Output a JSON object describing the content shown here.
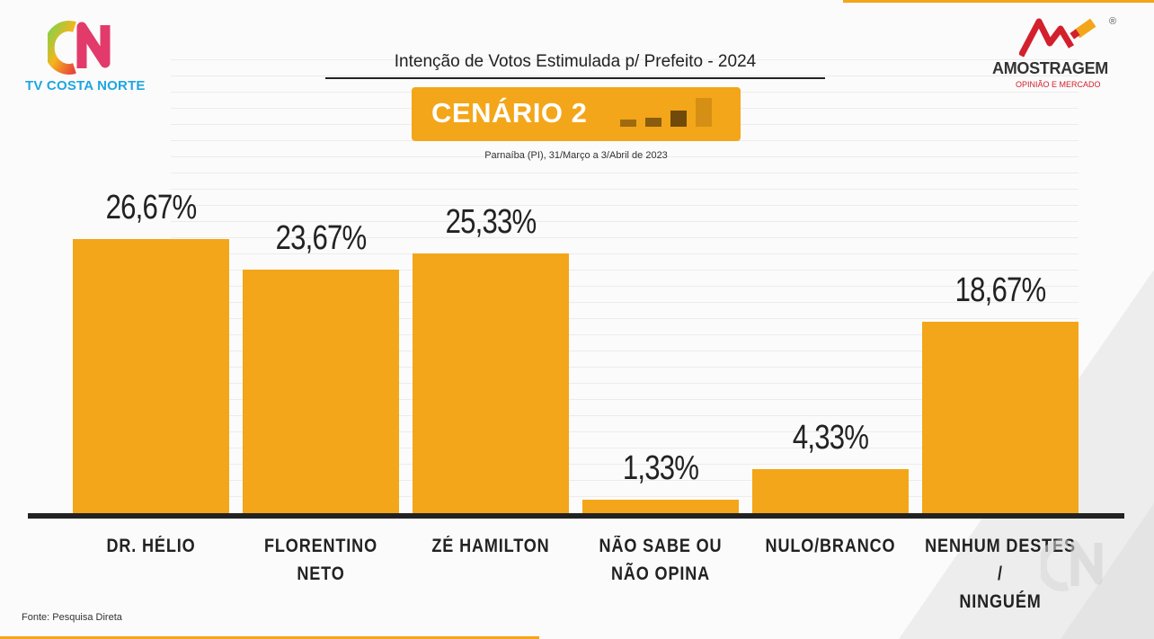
{
  "header": {
    "channel_name": "TV COSTA NORTE",
    "channel_logo_text": "CN",
    "pollster_name": "AMOSTRAGEM",
    "pollster_tagline": "OPINIÃO E MERCADO",
    "registered_mark": "®"
  },
  "footer": {
    "source": "Fonte: Pesquisa Direta"
  },
  "colors": {
    "bar": "#f3a619",
    "axis": "#222222",
    "text": "#222222",
    "brand_blue": "#1fa6e0",
    "brand_red": "#d3202d"
  },
  "chart_data": {
    "type": "bar",
    "title": "Intenção de Votos Estimulada p/ Prefeito - 2024",
    "scenario": "CENÁRIO 2",
    "subtitle": "Parnaíba (PI), 31/Março a 3/Abril de 2023",
    "categories": [
      "DR. HÉLIO",
      "FLORENTINO\nNETO",
      "ZÉ HAMILTON",
      "NÃO SABE OU\nNÃO OPINA",
      "NULO/BRANCO",
      "NENHUM DESTES /\nNINGUÉM"
    ],
    "values": [
      26.67,
      23.67,
      25.33,
      1.33,
      4.33,
      18.67
    ],
    "value_labels": [
      "26,67%",
      "23,67%",
      "25,33%",
      "1,33%",
      "4,33%",
      "18,67%"
    ],
    "unit": "%",
    "ylim": [
      0,
      28
    ],
    "grid": true,
    "xlabel": "",
    "ylabel": ""
  }
}
